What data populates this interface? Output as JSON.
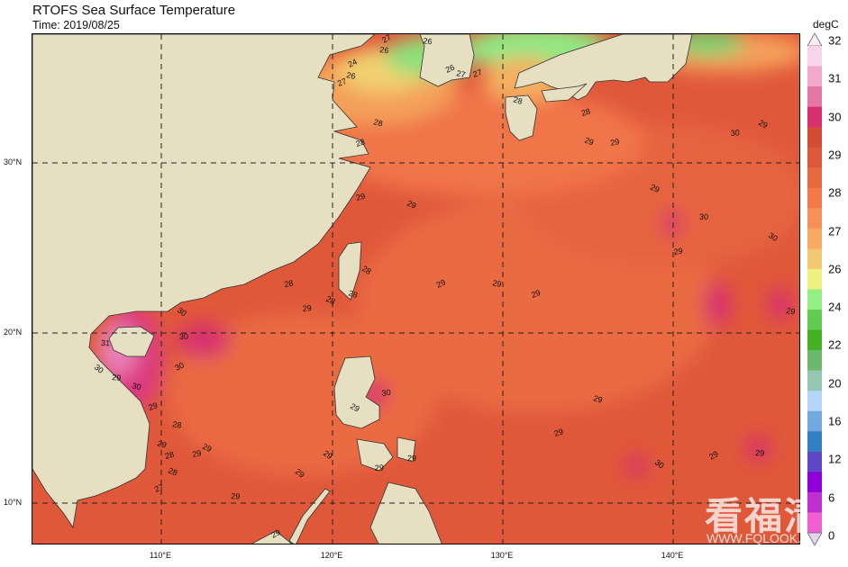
{
  "title": "RTOFS Sea Surface Temperature",
  "subtitle": "Time: 2019/08/25",
  "lat_labels": [
    "30°N",
    "20°N",
    "10°N"
  ],
  "lon_labels": [
    "110°E",
    "120°E",
    "130°E",
    "140°E"
  ],
  "colorbar": {
    "unit": "degC",
    "tick_labels": [
      "32",
      "31",
      "30",
      "29",
      "28",
      "27",
      "26",
      "24",
      "22",
      "20",
      "16",
      "12",
      "6",
      "0"
    ],
    "colors": [
      "#f8d4ea",
      "#f2a8cc",
      "#e476a8",
      "#d8306e",
      "#d44c36",
      "#dc5a3a",
      "#e86842",
      "#f47a48",
      "#f79058",
      "#f8aa62",
      "#f4c872",
      "#eef080",
      "#92f084",
      "#62cc52",
      "#44b024",
      "#6cb86c",
      "#94c8b4",
      "#b4d4f8",
      "#72aae0",
      "#3080c4",
      "#5e48c8",
      "#9000d8",
      "#c030d0",
      "#f060d0"
    ],
    "top_extend_color": "#fde8f5",
    "bottom_extend_color": "#e4d4f0"
  },
  "land_color": "#e6dfc2",
  "contour_labels": [
    "27",
    "26",
    "24",
    "26",
    "27",
    "28",
    "28",
    "28",
    "29",
    "29",
    "28",
    "28",
    "29",
    "28",
    "30",
    "30",
    "31",
    "30",
    "29",
    "30",
    "28",
    "27",
    "30",
    "29",
    "29",
    "28",
    "28",
    "29",
    "29",
    "30",
    "29",
    "29",
    "29",
    "29",
    "29",
    "29",
    "29",
    "26",
    "26",
    "27",
    "27",
    "28",
    "28",
    "29",
    "29",
    "29",
    "29",
    "29",
    "30",
    "30",
    "30",
    "30",
    "29",
    "29",
    "29",
    "29",
    "29",
    "29",
    "29",
    "29"
  ],
  "watermark": {
    "logo": "看福清",
    "url": "WWW.FQLOOK.COM"
  }
}
